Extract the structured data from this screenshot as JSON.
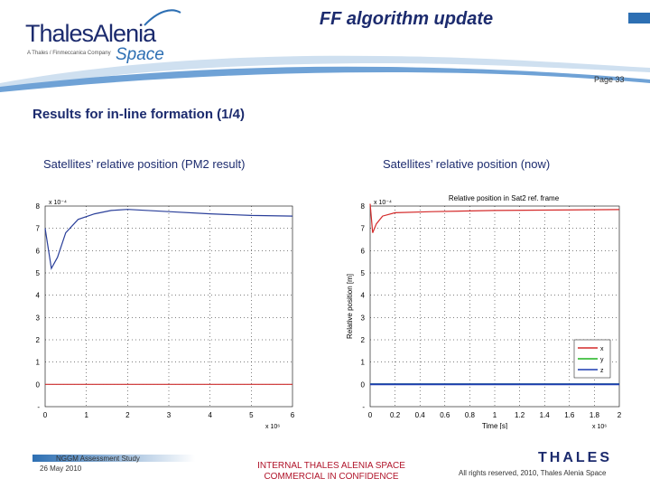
{
  "header": {
    "logo_text": "ThalesAlenia",
    "logo_tagline": "A Thales / Finmeccanica Company",
    "logo_space": "Space",
    "slide_title": "FF algorithm update",
    "page_label": "Page 33"
  },
  "section_title": "Results for in-line formation (1/4)",
  "captions": {
    "left": "Satellites’ relative position (PM2 result)",
    "right": "Satellites’ relative position (now)"
  },
  "footer": {
    "study": "NGGM Assessment Study",
    "date": "26 May 2010",
    "confidential_line1": "INTERNAL THALES ALENIA SPACE",
    "confidential_line2": "COMMERCIAL IN CONFIDENCE",
    "rights": "All rights reserved, 2010, Thales Alenia Space",
    "thales_logo": "THALES"
  },
  "colors": {
    "brand_navy": "#1c2b6e",
    "brand_blue": "#2d6fb3",
    "confidential_red": "#b0142a"
  },
  "chart_data": [
    {
      "type": "line",
      "title": "",
      "xlabel": "",
      "ylabel": "",
      "x_exponent": "x 10⁶",
      "y_exponent": "x 10⁻⁴",
      "xlim": [
        0,
        6
      ],
      "ylim": [
        -1,
        8
      ],
      "x_ticks": [
        "0",
        "1",
        "2",
        "3",
        "4",
        "5",
        "6"
      ],
      "y_ticks": [
        "-",
        "0",
        "1",
        "2",
        "3",
        "4",
        "5",
        "6",
        "7",
        "8"
      ],
      "grid": true,
      "series": [
        {
          "color": "#2a3f9a",
          "x": [
            0,
            0.15,
            0.3,
            0.5,
            0.8,
            1.2,
            1.6,
            2.0,
            3.0,
            4.0,
            5.0,
            6.0
          ],
          "y": [
            7.0,
            5.2,
            5.7,
            6.8,
            7.4,
            7.65,
            7.8,
            7.85,
            7.75,
            7.65,
            7.58,
            7.55
          ]
        },
        {
          "color": "#cc2b2b",
          "x": [
            0,
            6
          ],
          "y": [
            0,
            0
          ]
        }
      ]
    },
    {
      "type": "line",
      "title": "Relative position in Sat2 ref. frame",
      "xlabel": "Time [s]",
      "ylabel": "Relative position [m]",
      "x_exponent": "x 10⁶",
      "y_exponent": "x 10⁻⁴",
      "xlim": [
        0,
        2
      ],
      "ylim": [
        -1,
        8
      ],
      "x_ticks": [
        "0",
        "0.2",
        "0.4",
        "0.6",
        "0.8",
        "1",
        "1.2",
        "1.4",
        "1.6",
        "1.8",
        "2"
      ],
      "y_ticks": [
        "-",
        "0",
        "1",
        "2",
        "3",
        "4",
        "5",
        "6",
        "7",
        "8"
      ],
      "grid": true,
      "legend": [
        "x",
        "y",
        "z"
      ],
      "legend_position": "bottom-right",
      "series": [
        {
          "color": "#d42a2a",
          "x": [
            0,
            0.02,
            0.05,
            0.1,
            0.2,
            0.5,
            1.0,
            1.5,
            2.0
          ],
          "y": [
            8.1,
            6.8,
            7.2,
            7.55,
            7.7,
            7.75,
            7.8,
            7.82,
            7.84
          ]
        },
        {
          "color": "#1fb31f",
          "x": [
            0,
            2
          ],
          "y": [
            0.02,
            0.02
          ]
        },
        {
          "color": "#1c3bb0",
          "x": [
            0,
            2
          ],
          "y": [
            0,
            0
          ]
        }
      ]
    }
  ]
}
